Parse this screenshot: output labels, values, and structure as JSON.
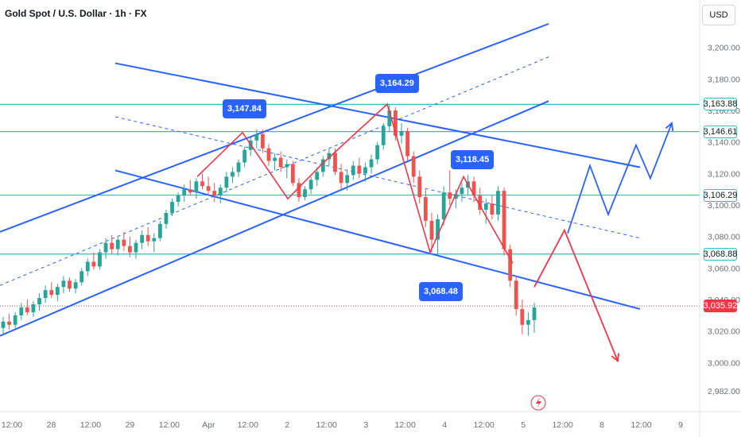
{
  "chart_title": "Gold Spot / U.S. Dollar · 1h · FX",
  "currency": "USD",
  "colors": {
    "up": "#26a69a",
    "down": "#ef5350",
    "trendline": "#2962ff",
    "level": "#22c3c3",
    "projection_blue": "#2962ff",
    "projection_red": "#f23645",
    "current_price": "#f23645"
  },
  "chart_data": {
    "type": "line",
    "title": "Gold Spot / U.S. Dollar · 1h · FX",
    "y_tick_labels": [
      "3,200.00",
      "3,180.00",
      "3,160.00",
      "3,140.00",
      "3,120.00",
      "3,100.00",
      "3,080.00",
      "3,060.00",
      "3,040.00",
      "3,020.00",
      "3,000.00",
      "2,982.00"
    ],
    "y_ticks": [
      3200,
      3180,
      3160,
      3140,
      3120,
      3100,
      3080,
      3060,
      3040,
      3020,
      3000,
      2982
    ],
    "ylim": [
      2978,
      3215
    ],
    "x_tick_labels": [
      "12:00",
      "28",
      "12:00",
      "29",
      "12:00",
      "Apr",
      "12:00",
      "2",
      "12:00",
      "3",
      "12:00",
      "4",
      "12:00",
      "5",
      "12:00",
      "8",
      "12:00",
      "9"
    ],
    "horizontal_levels": [
      3163.88,
      3146.61,
      3106.29,
      3068.88
    ],
    "level_labels": [
      "3,163.88",
      "3,146.61",
      "3,106.29",
      "3,068.88"
    ],
    "current_price": 3035.92,
    "current_price_label": "3,035.92",
    "annotations": [
      {
        "label": "3,147.84",
        "value": 3147.84
      },
      {
        "label": "3,164.29",
        "value": 3164.29
      },
      {
        "label": "3,118.45",
        "value": 3118.45
      },
      {
        "label": "3,068.48",
        "value": 3068.48
      }
    ],
    "series": [
      {
        "type": "candlestick",
        "values": [
          [
            3022,
            3029,
            3018,
            3026
          ],
          [
            3026,
            3031,
            3021,
            3024
          ],
          [
            3024,
            3032,
            3022,
            3030
          ],
          [
            3030,
            3038,
            3027,
            3035
          ],
          [
            3035,
            3040,
            3030,
            3032
          ],
          [
            3032,
            3039,
            3029,
            3037
          ],
          [
            3037,
            3044,
            3033,
            3041
          ],
          [
            3041,
            3049,
            3038,
            3046
          ],
          [
            3046,
            3051,
            3041,
            3043
          ],
          [
            3043,
            3050,
            3039,
            3048
          ],
          [
            3048,
            3055,
            3044,
            3052
          ],
          [
            3052,
            3054,
            3045,
            3047
          ],
          [
            3047,
            3053,
            3044,
            3051
          ],
          [
            3051,
            3060,
            3049,
            3058
          ],
          [
            3058,
            3066,
            3055,
            3064
          ],
          [
            3064,
            3070,
            3059,
            3061
          ],
          [
            3061,
            3072,
            3059,
            3070
          ],
          [
            3070,
            3079,
            3066,
            3076
          ],
          [
            3076,
            3081,
            3069,
            3072
          ],
          [
            3072,
            3080,
            3068,
            3078
          ],
          [
            3078,
            3083,
            3071,
            3074
          ],
          [
            3074,
            3080,
            3067,
            3070
          ],
          [
            3070,
            3078,
            3066,
            3076
          ],
          [
            3076,
            3084,
            3072,
            3081
          ],
          [
            3081,
            3086,
            3074,
            3077
          ],
          [
            3077,
            3082,
            3070,
            3079
          ],
          [
            3079,
            3090,
            3077,
            3088
          ],
          [
            3088,
            3097,
            3085,
            3095
          ],
          [
            3095,
            3104,
            3093,
            3102
          ],
          [
            3102,
            3108,
            3099,
            3106
          ],
          [
            3106,
            3113,
            3102,
            3110
          ],
          [
            3110,
            3116,
            3106,
            3108
          ],
          [
            3108,
            3117,
            3104,
            3115
          ],
          [
            3115,
            3120,
            3110,
            3112
          ],
          [
            3112,
            3118,
            3106,
            3109
          ],
          [
            3109,
            3114,
            3102,
            3106
          ],
          [
            3106,
            3113,
            3101,
            3111
          ],
          [
            3111,
            3121,
            3108,
            3118
          ],
          [
            3118,
            3124,
            3114,
            3121
          ],
          [
            3121,
            3129,
            3118,
            3127
          ],
          [
            3127,
            3137,
            3124,
            3135
          ],
          [
            3135,
            3143,
            3131,
            3141
          ],
          [
            3141,
            3148,
            3136,
            3145
          ],
          [
            3145,
            3148,
            3133,
            3136
          ],
          [
            3136,
            3139,
            3125,
            3128
          ],
          [
            3128,
            3133,
            3122,
            3130
          ],
          [
            3130,
            3134,
            3121,
            3124
          ],
          [
            3124,
            3129,
            3117,
            3126
          ],
          [
            3126,
            3128,
            3112,
            3114
          ],
          [
            3114,
            3117,
            3102,
            3105
          ],
          [
            3105,
            3112,
            3103,
            3110
          ],
          [
            3110,
            3118,
            3107,
            3116
          ],
          [
            3116,
            3124,
            3112,
            3121
          ],
          [
            3121,
            3131,
            3118,
            3129
          ],
          [
            3129,
            3136,
            3125,
            3133
          ],
          [
            3133,
            3136,
            3119,
            3121
          ],
          [
            3121,
            3126,
            3110,
            3114
          ],
          [
            3114,
            3122,
            3109,
            3119
          ],
          [
            3119,
            3128,
            3116,
            3125
          ],
          [
            3125,
            3130,
            3117,
            3120
          ],
          [
            3120,
            3127,
            3115,
            3124
          ],
          [
            3124,
            3132,
            3120,
            3129
          ],
          [
            3129,
            3140,
            3126,
            3138
          ],
          [
            3138,
            3152,
            3135,
            3150
          ],
          [
            3150,
            3164,
            3147,
            3160
          ],
          [
            3160,
            3162,
            3141,
            3144
          ],
          [
            3144,
            3152,
            3139,
            3147
          ],
          [
            3147,
            3149,
            3128,
            3131
          ],
          [
            3131,
            3134,
            3114,
            3118
          ],
          [
            3118,
            3122,
            3101,
            3105
          ],
          [
            3105,
            3110,
            3086,
            3090
          ],
          [
            3090,
            3095,
            3070,
            3078
          ],
          [
            3078,
            3094,
            3068,
            3091
          ],
          [
            3091,
            3112,
            3087,
            3108
          ],
          [
            3108,
            3122,
            3100,
            3104
          ],
          [
            3104,
            3110,
            3098,
            3107
          ],
          [
            3107,
            3114,
            3102,
            3111
          ],
          [
            3111,
            3119,
            3106,
            3115
          ],
          [
            3115,
            3118,
            3102,
            3106
          ],
          [
            3106,
            3111,
            3094,
            3097
          ],
          [
            3097,
            3104,
            3088,
            3101
          ],
          [
            3101,
            3106,
            3091,
            3094
          ],
          [
            3094,
            3112,
            3090,
            3109
          ],
          [
            3109,
            3111,
            3068,
            3072
          ],
          [
            3072,
            3075,
            3048,
            3052
          ],
          [
            3052,
            3055,
            3030,
            3034
          ],
          [
            3034,
            3040,
            3018,
            3024
          ],
          [
            3024,
            3032,
            3017,
            3027
          ],
          [
            3027,
            3038,
            3019,
            3035
          ]
        ]
      }
    ],
    "trendlines": [
      {
        "name": "",
        "kind": "channel-up",
        "from": [
          0,
          3083
        ],
        "to": [
          1,
          3215
        ]
      },
      {
        "name": "",
        "kind": "channel-up",
        "from": [
          0,
          3017
        ],
        "to": [
          1,
          3166
        ]
      },
      {
        "name": "",
        "kind": "channel-up-mid",
        "from": [
          0,
          3049
        ],
        "to": [
          1,
          3194
        ]
      },
      {
        "name": "",
        "kind": "channel-down",
        "from": [
          0,
          3190
        ],
        "to": [
          1,
          3124
        ]
      },
      {
        "name": "",
        "kind": "channel-down",
        "from": [
          0,
          3122
        ],
        "to": [
          1,
          3034
        ]
      },
      {
        "name": "",
        "kind": "channel-down-mid",
        "from": [
          0,
          3156
        ],
        "to": [
          1,
          3079
        ]
      }
    ],
    "projections": [
      {
        "color": "blue",
        "points": [
          3082,
          3125,
          3094,
          3138,
          3117,
          3152
        ]
      },
      {
        "color": "red",
        "points": [
          3048,
          3084,
          3001
        ]
      }
    ]
  }
}
